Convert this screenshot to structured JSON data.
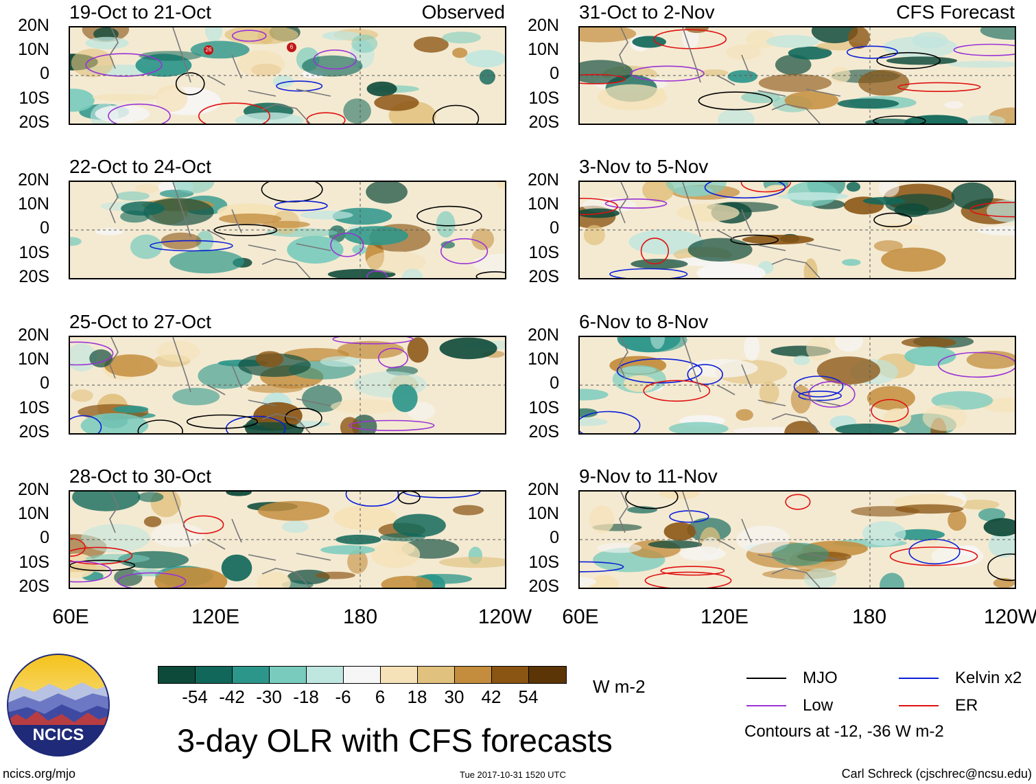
{
  "panels": [
    {
      "title": "19-Oct to 21-Oct",
      "kind": "Observed"
    },
    {
      "title": "22-Oct to 24-Oct",
      "kind": ""
    },
    {
      "title": "25-Oct to 27-Oct",
      "kind": ""
    },
    {
      "title": "28-Oct to 30-Oct",
      "kind": ""
    },
    {
      "title": "31-Oct to 2-Nov",
      "kind": "CFS Forecast"
    },
    {
      "title": "3-Nov to 5-Nov",
      "kind": ""
    },
    {
      "title": "6-Nov to 8-Nov",
      "kind": ""
    },
    {
      "title": "9-Nov to 11-Nov",
      "kind": ""
    }
  ],
  "lat_labels": [
    "20N",
    "10N",
    "0",
    "10S",
    "20S"
  ],
  "lon_labels": [
    "60E",
    "120E",
    "180",
    "120W"
  ],
  "colorbar": {
    "colors": [
      "#0e4a3a",
      "#11685a",
      "#2c968a",
      "#78cbbd",
      "#bfe6df",
      "#f6f6f6",
      "#f5e2b8",
      "#e1c17e",
      "#c38d3d",
      "#8a5413",
      "#5b3506"
    ],
    "ticks": [
      "-54",
      "-42",
      "-30",
      "-18",
      "-6",
      "6",
      "18",
      "30",
      "42",
      "54"
    ],
    "unit": "W m-2"
  },
  "legend": {
    "items": [
      {
        "label": "MJO",
        "color": "#000000"
      },
      {
        "label": "Kelvin x2",
        "color": "#0a1ed8"
      },
      {
        "label": "Low",
        "color": "#9a32d6"
      },
      {
        "label": "ER",
        "color": "#e01010"
      }
    ],
    "note": "Contours at -12, -36 W m-2"
  },
  "title": "3-day OLR with CFS forecasts",
  "logo": {
    "text": "NCICS"
  },
  "footer": {
    "url": "ncics.org/mjo",
    "timestamp": "Tue 2017-10-31 1520 UTC",
    "credit": "Carl Schreck (cjschrec@ncsu.edu)"
  },
  "storm_markers": [
    "26",
    "6"
  ]
}
